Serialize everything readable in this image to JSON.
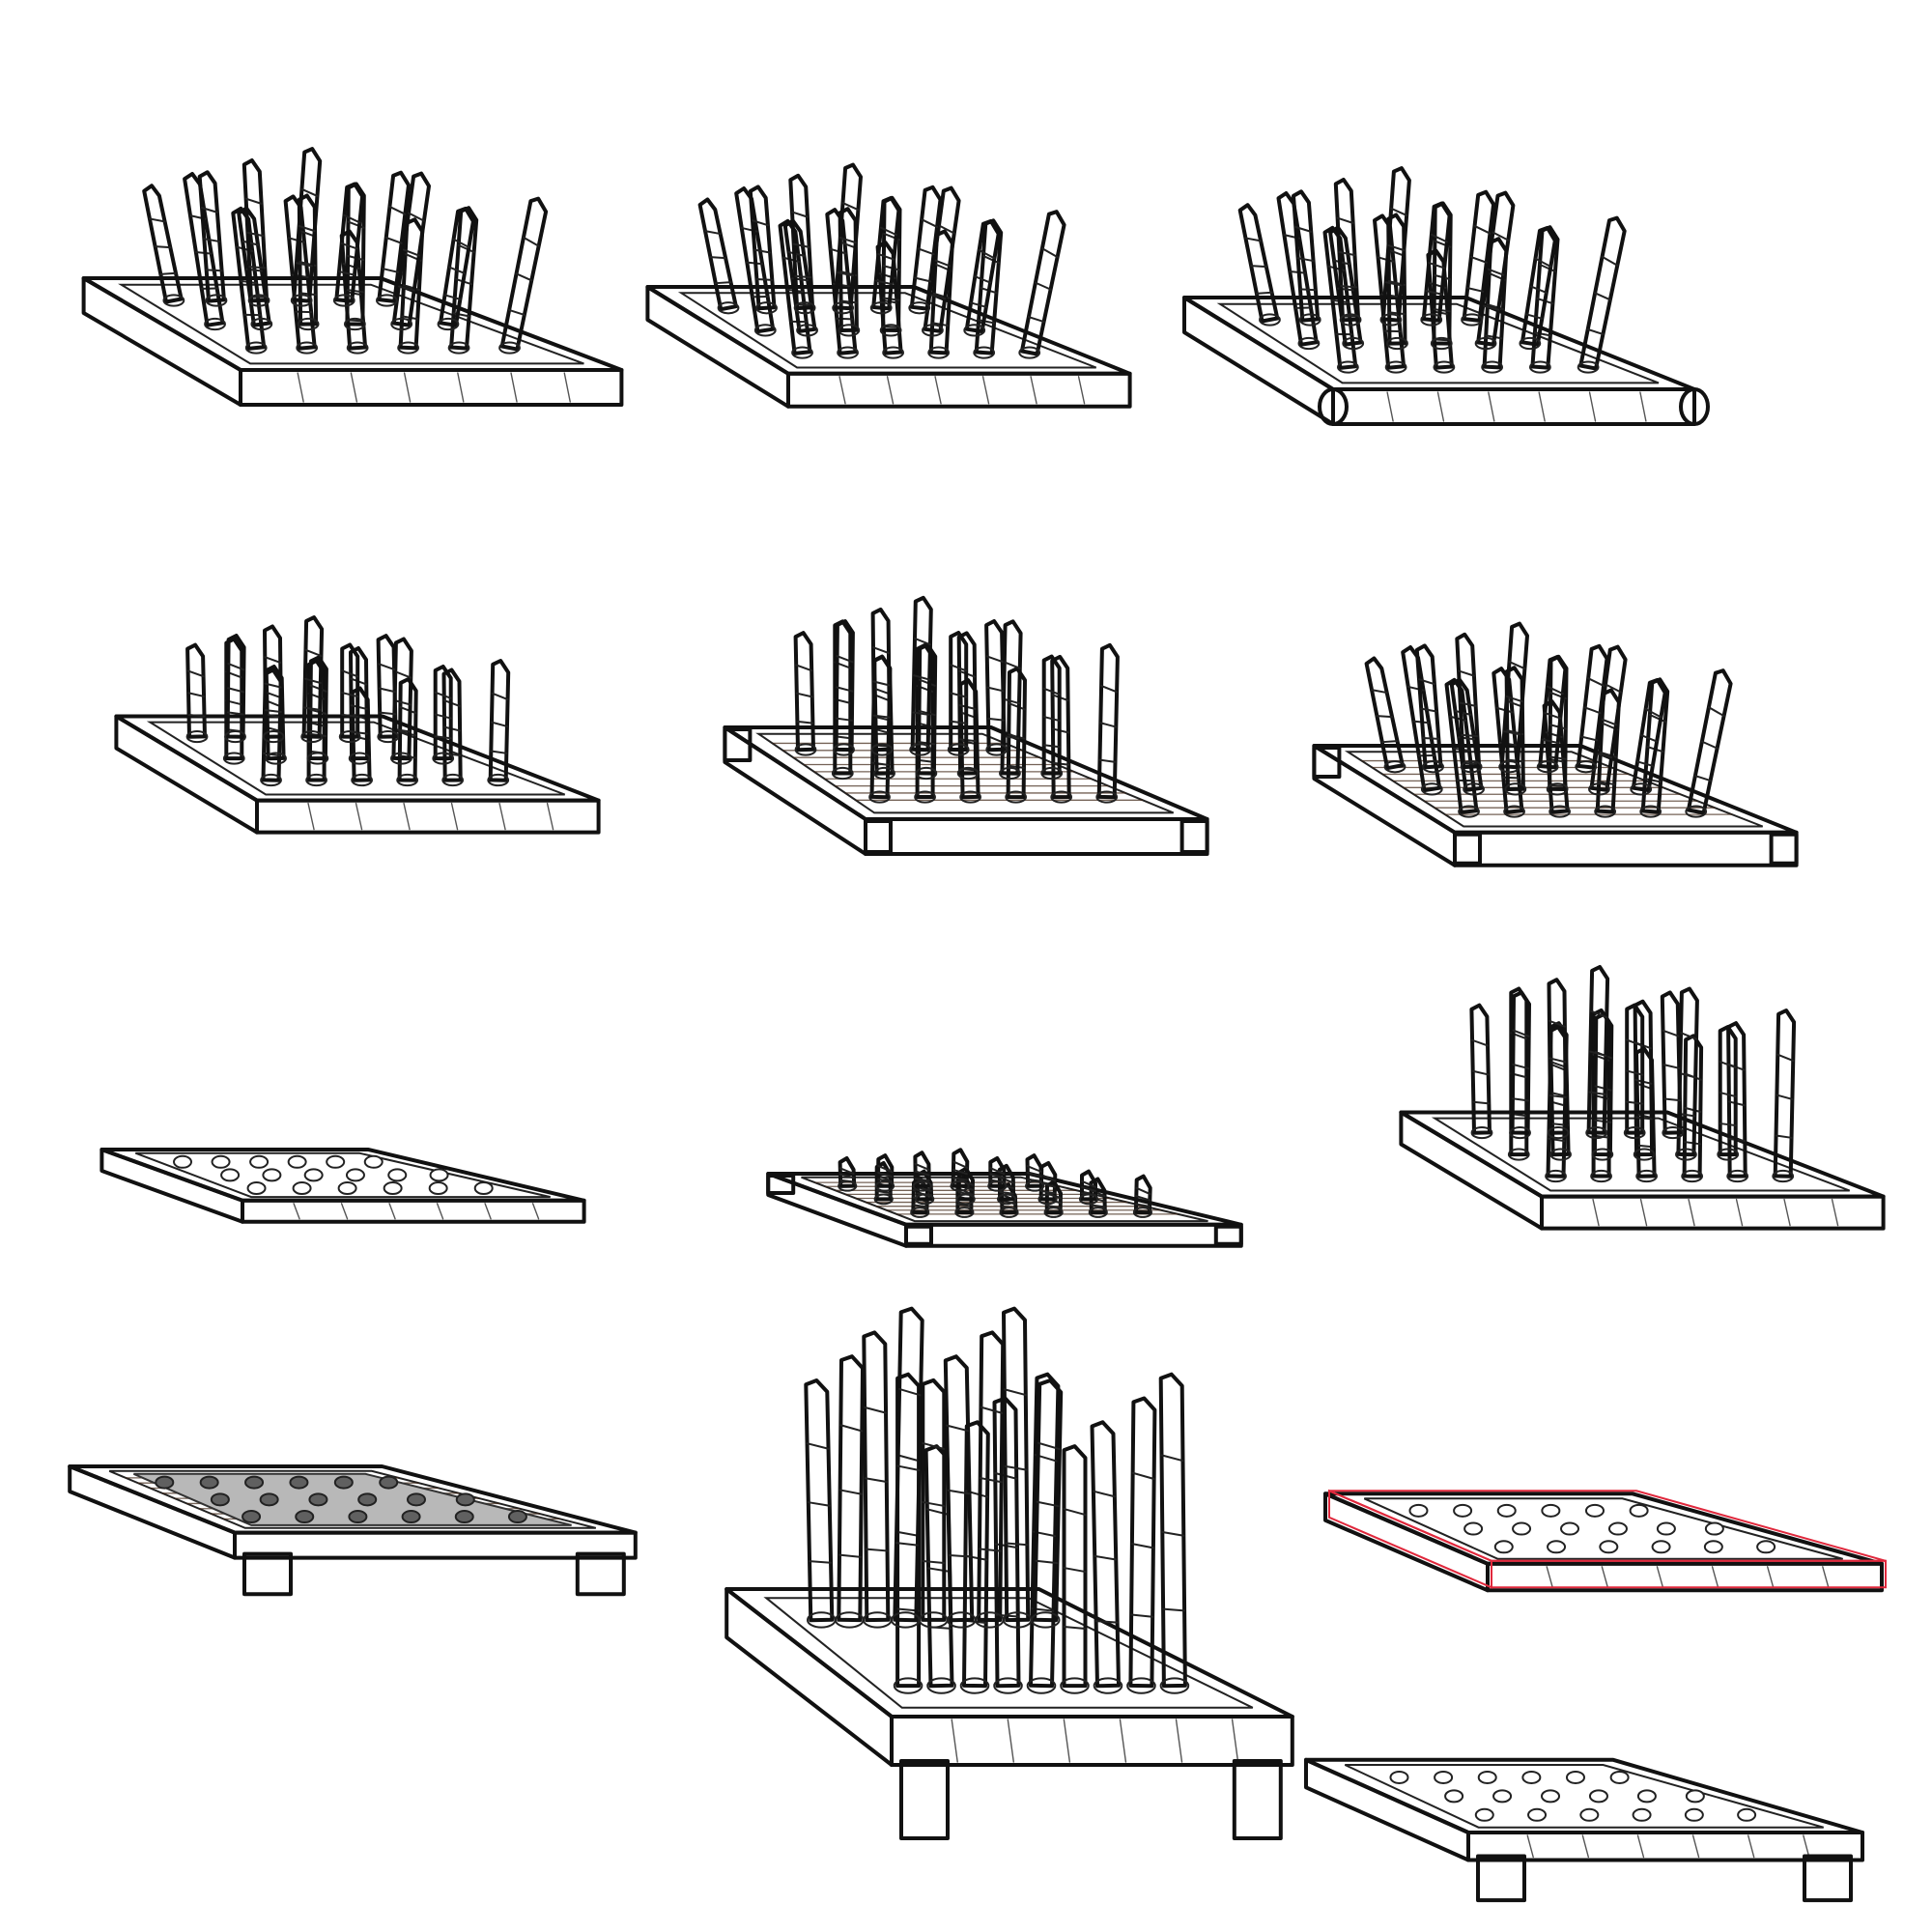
{
  "sheet": {
    "background": "#ffffff",
    "colors": {
      "ink": "#111111",
      "wood": "#5a3520",
      "wood_light": "#7a4a2c",
      "bamboo": "#c8b45a",
      "metal": "#b0b0b0",
      "gold": "#f0d000",
      "plate_grey": "#b8b8b8",
      "hole_grey": "#606060",
      "red_sketch": "#e0283c",
      "white": "#ffffff"
    },
    "tiles": [
      {
        "id": "spike-trap-1",
        "variant": "outline-spikes-rough",
        "fill": "white",
        "spikes": "leaning",
        "frame": "rough"
      },
      {
        "id": "spike-trap-2",
        "variant": "outline-spikes-clean",
        "fill": "white",
        "spikes": "leaning",
        "frame": "clean"
      },
      {
        "id": "spike-trap-3",
        "variant": "outline-spikes-rounded",
        "fill": "white",
        "spikes": "leaning",
        "frame": "rounded"
      },
      {
        "id": "spike-trap-4",
        "variant": "outline-spikes-short",
        "fill": "white",
        "spikes": "upright",
        "frame": "clean"
      },
      {
        "id": "spike-trap-5",
        "variant": "colored-spikes-wood",
        "fill": "wood",
        "spikes": "upright-bamboo",
        "frame": "metal-corners"
      },
      {
        "id": "spike-trap-6",
        "variant": "colored-spikes-gold",
        "fill": "wood",
        "spikes": "leaning-bamboo",
        "frame": "gold-corners"
      },
      {
        "id": "spike-trap-7",
        "variant": "outline-holes",
        "fill": "white",
        "spikes": "none",
        "frame": "clean"
      },
      {
        "id": "spike-trap-8",
        "variant": "colored-spikes-retracted",
        "fill": "wood",
        "spikes": "short-bamboo",
        "frame": "metal-corners"
      },
      {
        "id": "spike-trap-9",
        "variant": "outline-spikes-tall",
        "fill": "white",
        "spikes": "upright-tall",
        "frame": "clean"
      },
      {
        "id": "spike-trap-10",
        "variant": "colored-pressure-plate",
        "fill": "wood",
        "spikes": "none",
        "frame": "legs"
      },
      {
        "id": "spike-trap-11",
        "variant": "outline-spikes-wall",
        "fill": "white",
        "spikes": "dense-tall",
        "frame": "legs"
      },
      {
        "id": "spike-trap-12",
        "variant": "red-construction-sketch",
        "fill": "white",
        "spikes": "none",
        "frame": "red-lines"
      },
      {
        "id": "spike-trap-13",
        "variant": "outline-pressure-plate",
        "fill": "white",
        "spikes": "none",
        "frame": "legs"
      }
    ]
  }
}
